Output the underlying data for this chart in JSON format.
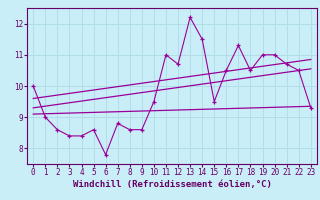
{
  "xlabel": "Windchill (Refroidissement éolien,°C)",
  "bg_color": "#caeef8",
  "line_color": "#990099",
  "grid_color": "#b0dde8",
  "xlim": [
    -0.5,
    23.5
  ],
  "ylim": [
    7.5,
    12.5
  ],
  "yticks": [
    8,
    9,
    10,
    11,
    12
  ],
  "xticks": [
    0,
    1,
    2,
    3,
    4,
    5,
    6,
    7,
    8,
    9,
    10,
    11,
    12,
    13,
    14,
    15,
    16,
    17,
    18,
    19,
    20,
    21,
    22,
    23
  ],
  "series1_x": [
    0,
    1,
    2,
    3,
    4,
    5,
    6,
    7,
    8,
    9,
    10,
    11,
    12,
    13,
    14,
    15,
    16,
    17,
    18,
    19,
    20,
    21,
    22,
    23
  ],
  "series1_y": [
    10.0,
    9.0,
    8.6,
    8.4,
    8.4,
    8.6,
    7.8,
    8.8,
    8.6,
    8.6,
    9.5,
    11.0,
    10.7,
    12.2,
    11.5,
    9.5,
    10.5,
    11.3,
    10.5,
    11.0,
    11.0,
    10.7,
    10.5,
    9.3
  ],
  "trend1_x": [
    0,
    23
  ],
  "trend1_y": [
    9.1,
    9.35
  ],
  "trend2_x": [
    0,
    23
  ],
  "trend2_y": [
    9.3,
    10.55
  ],
  "trend3_x": [
    0,
    23
  ],
  "trend3_y": [
    9.6,
    10.85
  ],
  "tick_fontsize": 5.5,
  "label_fontsize": 6.5
}
